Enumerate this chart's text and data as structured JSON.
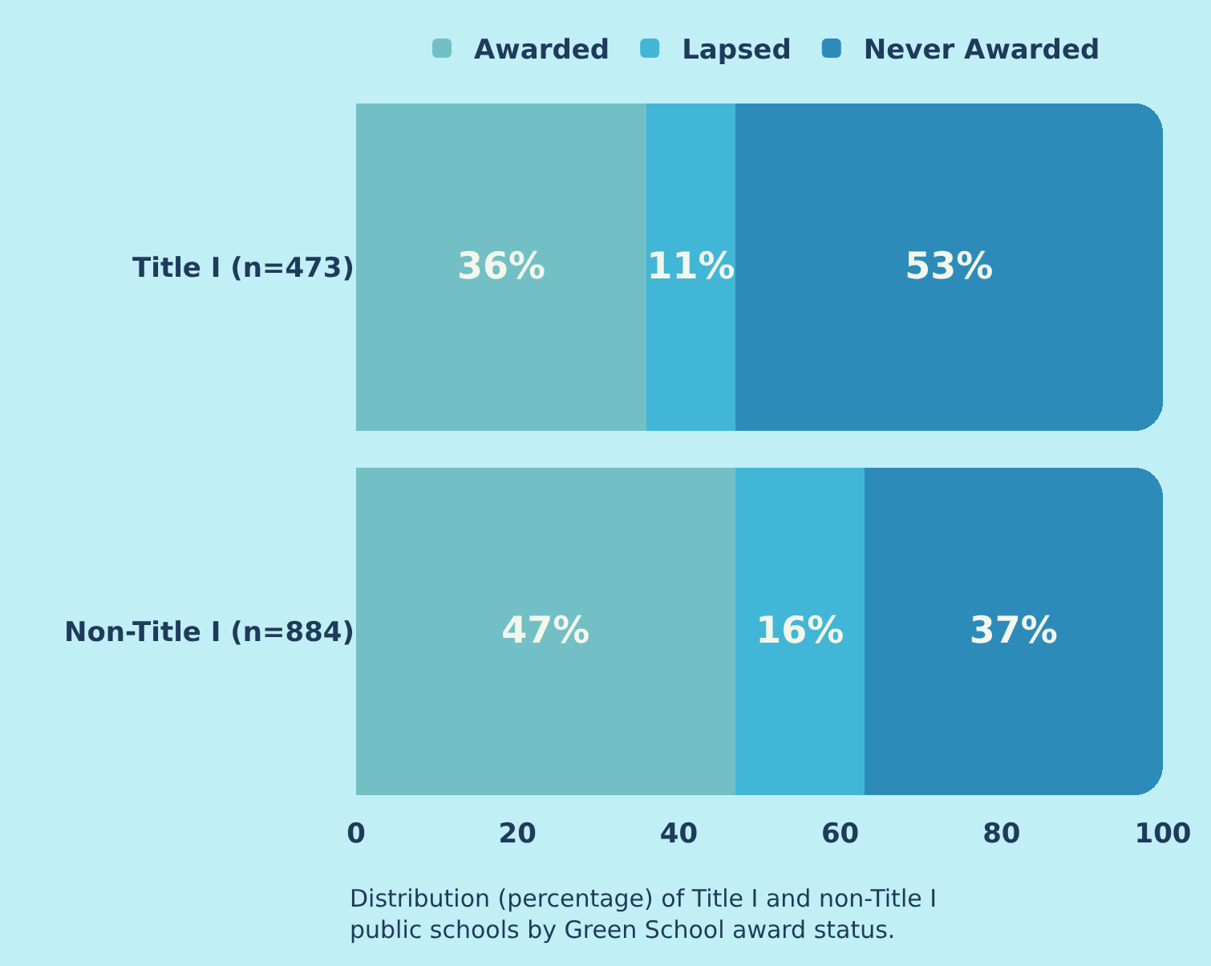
{
  "chart_data": {
    "type": "bar",
    "orientation": "horizontal",
    "stacked": true,
    "categories": [
      "Title I (n=473)",
      "Non-Title I (n=884)"
    ],
    "series": [
      {
        "name": "Awarded",
        "color": "#72c0c5",
        "values": [
          36,
          47
        ],
        "value_labels": [
          "36%",
          "47%"
        ]
      },
      {
        "name": "Lapsed",
        "color": "#42b6d6",
        "values": [
          11,
          16
        ],
        "value_labels": [
          "11%",
          "16%"
        ]
      },
      {
        "name": "Never Awarded",
        "color": "#2d8bba",
        "values": [
          53,
          37
        ],
        "value_labels": [
          "53%",
          "37%"
        ]
      }
    ],
    "xlim": [
      0,
      100
    ],
    "xticks": [
      0,
      20,
      40,
      60,
      80,
      100
    ],
    "legend": "top",
    "annotations": [
      "Distribution (percentage) of Title I and non-Title I public schools by Green School award status."
    ]
  }
}
